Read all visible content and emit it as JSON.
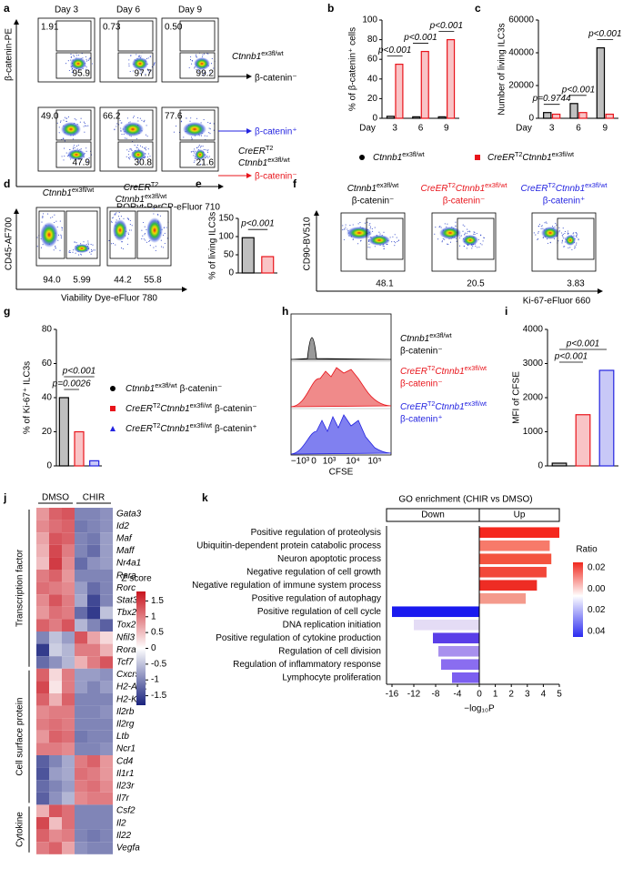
{
  "panels": {
    "panel_labels": [
      "a",
      "b",
      "c",
      "d",
      "e",
      "f",
      "g",
      "h",
      "i",
      "j",
      "k"
    ],
    "genotypes": {
      "control": {
        "gene": "Ctnnb1",
        "allele": "ex3fl/wt"
      },
      "cre": {
        "driver": "CreER",
        "driver_tag": "T2",
        "gene": "Ctnnb1",
        "allele": "ex3fl/wt"
      }
    },
    "a": {
      "days": [
        "Day 3",
        "Day 6",
        "Day 9"
      ],
      "y_label": "β-catenin-PE",
      "x_label": "RORγt-PerCP-eFluor 710",
      "rows": [
        {
          "plots": [
            {
              "upper": "1.91",
              "lower": "95.9"
            },
            {
              "upper": "0.73",
              "lower": "97.7"
            },
            {
              "upper": "0.50",
              "lower": "99.2"
            }
          ],
          "arrows": [
            "β-catenin⁻"
          ]
        },
        {
          "plots": [
            {
              "upper": "49.0",
              "lower": "47.9"
            },
            {
              "upper": "66.2",
              "lower": "30.8"
            },
            {
              "upper": "77.6",
              "lower": "21.6"
            }
          ],
          "arrows": [
            "β-catenin⁺",
            "β-catenin⁻"
          ]
        }
      ]
    },
    "d": {
      "y_label": "CD45-AF700",
      "x_label": "Viability Dye-eFluor 780",
      "plots": [
        {
          "left": "94.0",
          "right": "5.99"
        },
        {
          "left": "44.2",
          "right": "55.8"
        }
      ]
    },
    "f": {
      "y_label": "CD90-BV510",
      "x_label": "Ki-67-eFluor 660",
      "plots": [
        {
          "state": "β-catenin⁻",
          "gate": "48.1"
        },
        {
          "state": "β-catenin⁻",
          "gate": "20.5"
        },
        {
          "state": "β-catenin⁺",
          "gate": "3.83"
        }
      ]
    },
    "h": {
      "x_label": "CFSE",
      "x_ticks": [
        "−10³",
        "0",
        "10³",
        "10⁴",
        "10⁵"
      ],
      "states": [
        "β-catenin⁻",
        "β-catenin⁻",
        "β-catenin⁺"
      ]
    },
    "j": {
      "columns": [
        "DMSO",
        "CHIR"
      ],
      "scale_title": "Z score",
      "zlim": [
        -1.8,
        1.8
      ],
      "zticks": [
        1.5,
        1,
        0.5,
        0,
        -0.5,
        -1,
        -1.5
      ],
      "groups": [
        {
          "name": "Transcription factor",
          "genes": [
            {
              "name": "Gata3",
              "values": [
                0.8,
                1.2,
                1.3,
                -1,
                -1,
                -0.9
              ]
            },
            {
              "name": "Id2",
              "values": [
                0.9,
                1.1,
                1.2,
                -1.1,
                -1,
                -0.9
              ]
            },
            {
              "name": "Maf",
              "values": [
                0.7,
                1.3,
                1.2,
                -1,
                -1.1,
                -0.8
              ]
            },
            {
              "name": "Maff",
              "values": [
                0.6,
                1.4,
                1,
                -1,
                -1.2,
                -0.8
              ]
            },
            {
              "name": "Nr4a1",
              "values": [
                0.5,
                1.5,
                0.9,
                -1.2,
                -0.9,
                -0.8
              ]
            },
            {
              "name": "Rara",
              "values": [
                1,
                1.2,
                0.8,
                -1,
                -1,
                -1
              ]
            },
            {
              "name": "Rorc",
              "values": [
                1.1,
                1,
                0.9,
                -0.8,
                -1.2,
                -1
              ]
            },
            {
              "name": "Stat3",
              "values": [
                0.9,
                1.3,
                1,
                -0.7,
                -1.5,
                -1
              ]
            },
            {
              "name": "Tbx21",
              "values": [
                0.8,
                1.1,
                1,
                -1.2,
                -1.6,
                -0.5
              ]
            },
            {
              "name": "Tox2",
              "values": [
                1.2,
                1,
                1.3,
                -0.6,
                -1,
                -1.3
              ]
            },
            {
              "name": "Nfil3",
              "values": [
                -1,
                -0.5,
                -0.8,
                1.3,
                0.7,
                0.3
              ]
            },
            {
              "name": "Rora",
              "values": [
                -1.6,
                -0.4,
                -0.6,
                1,
                1,
                0.6
              ]
            },
            {
              "name": "Tcf7",
              "values": [
                -1.2,
                -0.9,
                -0.6,
                0.6,
                1,
                1.3
              ]
            }
          ]
        },
        {
          "name": "Cell surface protein",
          "genes": [
            {
              "name": "Cxcr5",
              "values": [
                1.2,
                0.3,
                1,
                -0.8,
                -0.8,
                -0.9
              ]
            },
            {
              "name": "H2-Ab1",
              "values": [
                1.4,
                0.2,
                1,
                -0.8,
                -1,
                -0.8
              ]
            },
            {
              "name": "H2-K1",
              "values": [
                1.2,
                0.6,
                1.2,
                -1,
                -1,
                -1
              ]
            },
            {
              "name": "Il2rb",
              "values": [
                0.9,
                1,
                1,
                -1,
                -1,
                -0.9
              ]
            },
            {
              "name": "Il2rg",
              "values": [
                1,
                1.1,
                1,
                -1,
                -1,
                -1
              ]
            },
            {
              "name": "Ltb",
              "values": [
                0.8,
                1.2,
                1.1,
                -1.1,
                -1,
                -1
              ]
            },
            {
              "name": "Ncr1",
              "values": [
                1,
                1,
                0.9,
                -1,
                -1,
                -0.9
              ]
            },
            {
              "name": "Cd4",
              "values": [
                -1.3,
                -1,
                -0.7,
                1,
                1.2,
                0.8
              ]
            },
            {
              "name": "Il1r1",
              "values": [
                -1.4,
                -0.8,
                -0.7,
                1.1,
                1,
                0.8
              ]
            },
            {
              "name": "Il23r",
              "values": [
                -1.2,
                -1,
                -0.8,
                1,
                1.1,
                0.9
              ]
            },
            {
              "name": "Il7r",
              "values": [
                -1.3,
                -0.9,
                -0.6,
                0.9,
                1,
                1
              ]
            }
          ]
        },
        {
          "name": "Cytokine",
          "genes": [
            {
              "name": "Csf2",
              "values": [
                0.6,
                1.3,
                1.1,
                -1,
                -1,
                -1
              ]
            },
            {
              "name": "Il2",
              "values": [
                1.4,
                0.5,
                1.1,
                -1,
                -1,
                -1
              ]
            },
            {
              "name": "Il22",
              "values": [
                1.2,
                0.9,
                1,
                -1,
                -1.1,
                -1
              ]
            },
            {
              "name": "Vegfa",
              "values": [
                1,
                1.2,
                0.7,
                -0.9,
                -1,
                -1
              ]
            }
          ]
        }
      ]
    }
  },
  "chart_data": [
    {
      "type": "bar",
      "y_label": "% of β-catenin⁺ cells",
      "x_prefix": "Day",
      "categories": [
        "3",
        "6",
        "9"
      ],
      "series": [
        {
          "color": "#000000",
          "values": [
            2,
            1.5,
            1.5
          ]
        },
        {
          "color": "#e8141b",
          "values": [
            55,
            68,
            80
          ]
        }
      ],
      "ylim": [
        0,
        100
      ],
      "yticks": [
        0,
        20,
        40,
        60,
        80,
        100
      ],
      "annotations": [
        "p<0.001",
        "p<0.001",
        "p<0.001"
      ]
    },
    {
      "type": "bar",
      "y_label": "Number of living ILC3s",
      "x_prefix": "Day",
      "categories": [
        "3",
        "6",
        "9"
      ],
      "series": [
        {
          "color": "#000000",
          "values": [
            3500,
            9000,
            43000
          ]
        },
        {
          "color": "#e8141b",
          "values": [
            2500,
            3500,
            2500
          ]
        }
      ],
      "ylim": [
        0,
        60000
      ],
      "yticks": [
        0,
        20000,
        40000,
        60000
      ],
      "annotations": [
        "p=0.9744",
        "p<0.001",
        "p<0.001"
      ]
    },
    {
      "type": "bar",
      "y_label": "% of living ILC3s",
      "series": [
        {
          "color": "#000000",
          "values": [
            97
          ]
        },
        {
          "color": "#e8141b",
          "values": [
            45
          ]
        }
      ],
      "ylim": [
        0,
        150
      ],
      "yticks": [
        0,
        50,
        100,
        150
      ],
      "annotations": [
        "p<0.001"
      ]
    },
    {
      "type": "bar",
      "y_label": "% of Ki-67⁺ ILC3s",
      "series": [
        {
          "color": "#000000",
          "values": [
            40
          ]
        },
        {
          "color": "#e8141b",
          "values": [
            20
          ]
        },
        {
          "color": "#2323e0",
          "values": [
            3
          ]
        }
      ],
      "states": [
        "β-catenin⁻",
        "β-catenin⁻",
        "β-catenin⁺"
      ],
      "ylim": [
        0,
        80
      ],
      "yticks": [
        0,
        20,
        40,
        60,
        80
      ],
      "annotations": [
        "p<0.001",
        "p=0.0026"
      ]
    },
    {
      "type": "bar",
      "y_label": "MFI of CFSE",
      "series": [
        {
          "color": "#000000",
          "values": [
            80
          ]
        },
        {
          "color": "#e8141b",
          "values": [
            1500
          ]
        },
        {
          "color": "#2323e0",
          "values": [
            2800
          ]
        }
      ],
      "ylim": [
        0,
        4000
      ],
      "yticks": [
        0,
        1000,
        2000,
        3000,
        4000
      ],
      "annotations": [
        "p<0.001",
        "p<0.001"
      ]
    },
    {
      "type": "barh",
      "title": "GO enrichment (CHIR vs DMSO)",
      "groups": [
        "Down",
        "Up"
      ],
      "x_label": "−log₁₀P",
      "categories": [
        "Positive regulation of proteolysis",
        "Ubiquitin-dependent protein catabolic process",
        "Neuron apoptotic process",
        "Negative regulation of cell growth",
        "Negative regulation of immune system process",
        "Positive regulation of autophagy",
        "Positive regulation of cell cycle",
        "DNA replication initiation",
        "Positive regulation of cytokine production",
        "Regulation of cell division",
        "Regulation of inflammatory response",
        "Lymphocyte proliferation"
      ],
      "values": [
        5,
        4.4,
        4.5,
        4.2,
        3.6,
        2.9,
        -16,
        -12,
        -8.5,
        -7.5,
        -7,
        -5
      ],
      "colors": [
        "#f5281e",
        "#f77a6a",
        "#f4533e",
        "#f2483a",
        "#ee2c24",
        "#f49a8c",
        "#1a1aef",
        "#e4dcf5",
        "#5a3ee8",
        "#a890ee",
        "#8a6df0",
        "#7c5ff0"
      ],
      "xlim": [
        -17,
        5
      ],
      "xticks": [
        -16,
        -12,
        -8,
        -4,
        0,
        1,
        2,
        3,
        4,
        5
      ],
      "legend_title": "Ratio",
      "legend_ticks": [
        "0.02",
        "0.00",
        "0.02",
        "0.04"
      ]
    }
  ]
}
